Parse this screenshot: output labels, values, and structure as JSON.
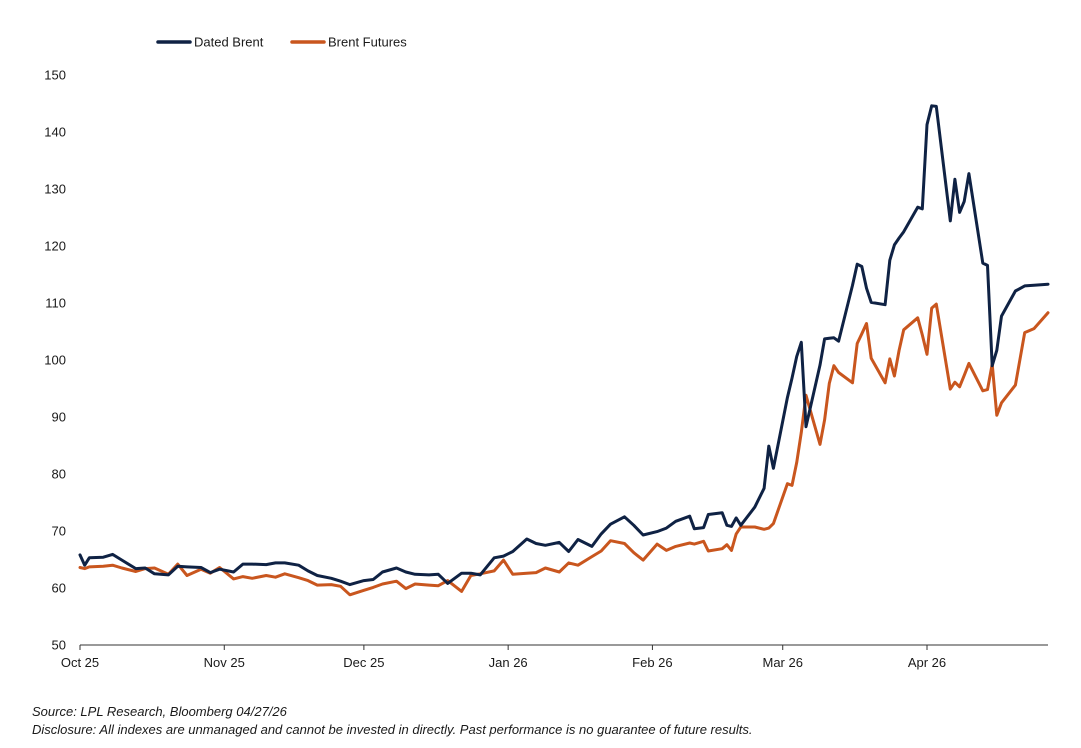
{
  "colors": {
    "dated_brent": "#0f2244",
    "brent_futures": "#c9561e",
    "axis": "#333333"
  },
  "footer": {
    "source": "Source: LPL Research, Bloomberg 04/27/26",
    "disclosure": "Disclosure: All indexes are unmanaged and cannot be invested in directly. Past performance is no guarantee of future results."
  },
  "chart_data": {
    "type": "line",
    "title": "",
    "xlabel": "",
    "ylabel": "",
    "ylim": [
      50,
      150
    ],
    "yticks": [
      50,
      60,
      70,
      80,
      90,
      100,
      110,
      120,
      130,
      140,
      150
    ],
    "xlim": [
      "2025-10-01",
      "2026-04-27"
    ],
    "xticks": [
      {
        "label": "Oct 25",
        "date": "2025-10-01"
      },
      {
        "label": "Nov 25",
        "date": "2025-11-01"
      },
      {
        "label": "Dec 25",
        "date": "2025-12-01"
      },
      {
        "label": "Jan 26",
        "date": "2026-01-01"
      },
      {
        "label": "Feb 26",
        "date": "2026-02-01"
      },
      {
        "label": "Mar 26",
        "date": "2026-03-01"
      },
      {
        "label": "Apr 26",
        "date": "2026-04-01"
      }
    ],
    "grid": false,
    "legend": "top-left",
    "series": [
      {
        "name": "Dated Brent",
        "x": [
          "2025-10-01",
          "2025-10-02",
          "2025-10-03",
          "2025-10-06",
          "2025-10-08",
          "2025-10-10",
          "2025-10-13",
          "2025-10-15",
          "2025-10-17",
          "2025-10-20",
          "2025-10-22",
          "2025-10-24",
          "2025-10-27",
          "2025-10-29",
          "2025-10-31",
          "2025-11-03",
          "2025-11-05",
          "2025-11-07",
          "2025-11-10",
          "2025-11-12",
          "2025-11-14",
          "2025-11-17",
          "2025-11-19",
          "2025-11-21",
          "2025-11-24",
          "2025-11-26",
          "2025-11-28",
          "2025-12-01",
          "2025-12-03",
          "2025-12-05",
          "2025-12-08",
          "2025-12-10",
          "2025-12-12",
          "2025-12-15",
          "2025-12-17",
          "2025-12-19",
          "2025-12-22",
          "2025-12-24",
          "2025-12-26",
          "2025-12-29",
          "2025-12-31",
          "2026-01-02",
          "2026-01-05",
          "2026-01-07",
          "2026-01-09",
          "2026-01-12",
          "2026-01-14",
          "2026-01-16",
          "2026-01-19",
          "2026-01-21",
          "2026-01-23",
          "2026-01-26",
          "2026-01-28",
          "2026-01-30",
          "2026-02-02",
          "2026-02-04",
          "2026-02-06",
          "2026-02-09",
          "2026-02-10",
          "2026-02-12",
          "2026-02-13",
          "2026-02-16",
          "2026-02-17",
          "2026-02-18",
          "2026-02-19",
          "2026-02-20",
          "2026-02-23",
          "2026-02-25",
          "2026-02-26",
          "2026-02-27",
          "2026-03-02",
          "2026-03-03",
          "2026-03-04",
          "2026-03-05",
          "2026-03-06",
          "2026-03-09",
          "2026-03-10",
          "2026-03-11",
          "2026-03-12",
          "2026-03-13",
          "2026-03-16",
          "2026-03-17",
          "2026-03-18",
          "2026-03-19",
          "2026-03-20",
          "2026-03-23",
          "2026-03-24",
          "2026-03-25",
          "2026-03-26",
          "2026-03-27",
          "2026-03-30",
          "2026-03-31",
          "2026-04-01",
          "2026-04-02",
          "2026-04-03",
          "2026-04-06",
          "2026-04-07",
          "2026-04-08",
          "2026-04-09",
          "2026-04-10",
          "2026-04-13",
          "2026-04-14",
          "2026-04-15",
          "2026-04-16",
          "2026-04-17",
          "2026-04-20",
          "2026-04-22",
          "2026-04-24",
          "2026-04-27"
        ],
        "values": [
          65.8,
          64.0,
          65.3,
          65.4,
          65.9,
          64.9,
          63.4,
          63.5,
          62.5,
          62.3,
          63.8,
          63.7,
          63.6,
          62.7,
          63.3,
          62.8,
          64.2,
          64.2,
          64.1,
          64.4,
          64.4,
          64.0,
          63.0,
          62.2,
          61.7,
          61.2,
          60.6,
          61.3,
          61.5,
          62.8,
          63.5,
          62.8,
          62.4,
          62.3,
          62.4,
          60.8,
          62.6,
          62.6,
          62.3,
          65.3,
          65.6,
          66.4,
          68.6,
          67.8,
          67.5,
          68.0,
          66.4,
          68.5,
          67.3,
          69.5,
          71.2,
          72.5,
          71.0,
          69.3,
          69.9,
          70.5,
          71.7,
          72.6,
          70.4,
          70.6,
          72.9,
          73.2,
          71.0,
          70.8,
          72.3,
          71.0,
          74.2,
          77.5,
          84.9,
          81.0,
          93.4,
          96.8,
          100.6,
          103.1,
          88.3,
          99.1,
          103.7,
          103.8,
          103.9,
          103.3,
          113.1,
          116.8,
          116.4,
          112.6,
          110.1,
          109.7,
          117.5,
          120.2,
          121.4,
          122.5,
          126.8,
          126.5,
          141.3,
          144.6,
          144.5,
          124.4,
          131.7,
          125.9,
          127.8,
          132.7,
          117.0,
          116.6,
          99.0,
          101.7,
          107.7,
          112.1,
          113.0,
          113.1,
          113.3
        ]
      },
      {
        "name": "Brent Futures",
        "x": [
          "2025-10-01",
          "2025-10-02",
          "2025-10-03",
          "2025-10-06",
          "2025-10-08",
          "2025-10-10",
          "2025-10-13",
          "2025-10-15",
          "2025-10-17",
          "2025-10-20",
          "2025-10-22",
          "2025-10-24",
          "2025-10-27",
          "2025-10-29",
          "2025-10-31",
          "2025-11-03",
          "2025-11-05",
          "2025-11-07",
          "2025-11-10",
          "2025-11-12",
          "2025-11-14",
          "2025-11-17",
          "2025-11-19",
          "2025-11-21",
          "2025-11-24",
          "2025-11-26",
          "2025-11-28",
          "2025-12-01",
          "2025-12-03",
          "2025-12-05",
          "2025-12-08",
          "2025-12-10",
          "2025-12-12",
          "2025-12-15",
          "2025-12-17",
          "2025-12-19",
          "2025-12-22",
          "2025-12-24",
          "2025-12-26",
          "2025-12-29",
          "2025-12-31",
          "2026-01-02",
          "2026-01-05",
          "2026-01-07",
          "2026-01-09",
          "2026-01-12",
          "2026-01-14",
          "2026-01-16",
          "2026-01-19",
          "2026-01-21",
          "2026-01-23",
          "2026-01-26",
          "2026-01-28",
          "2026-01-30",
          "2026-02-02",
          "2026-02-04",
          "2026-02-06",
          "2026-02-09",
          "2026-02-10",
          "2026-02-12",
          "2026-02-13",
          "2026-02-16",
          "2026-02-17",
          "2026-02-18",
          "2026-02-19",
          "2026-02-20",
          "2026-02-23",
          "2026-02-25",
          "2026-02-26",
          "2026-02-27",
          "2026-03-02",
          "2026-03-03",
          "2026-03-04",
          "2026-03-05",
          "2026-03-06",
          "2026-03-09",
          "2026-03-10",
          "2026-03-11",
          "2026-03-12",
          "2026-03-13",
          "2026-03-16",
          "2026-03-17",
          "2026-03-18",
          "2026-03-19",
          "2026-03-20",
          "2026-03-23",
          "2026-03-24",
          "2026-03-25",
          "2026-03-26",
          "2026-03-27",
          "2026-03-30",
          "2026-03-31",
          "2026-04-01",
          "2026-04-02",
          "2026-04-03",
          "2026-04-06",
          "2026-04-07",
          "2026-04-08",
          "2026-04-09",
          "2026-04-10",
          "2026-04-13",
          "2026-04-14",
          "2026-04-15",
          "2026-04-16",
          "2026-04-17",
          "2026-04-20",
          "2026-04-22",
          "2026-04-24",
          "2026-04-27"
        ],
        "values": [
          63.6,
          63.4,
          63.7,
          63.8,
          64.0,
          63.5,
          62.9,
          63.4,
          63.5,
          62.4,
          64.2,
          62.2,
          63.3,
          62.6,
          63.6,
          61.6,
          62.0,
          61.7,
          62.2,
          61.9,
          62.5,
          61.8,
          61.3,
          60.5,
          60.6,
          60.3,
          58.8,
          59.6,
          60.1,
          60.7,
          61.2,
          59.9,
          60.7,
          60.5,
          60.4,
          61.3,
          59.4,
          62.2,
          62.5,
          63.0,
          64.9,
          62.4,
          62.6,
          62.7,
          63.5,
          62.8,
          64.4,
          64.0,
          65.5,
          66.5,
          68.3,
          67.8,
          66.2,
          64.9,
          67.7,
          66.6,
          67.3,
          67.9,
          67.7,
          68.2,
          66.5,
          66.9,
          67.6,
          66.6,
          69.5,
          70.7,
          70.7,
          70.3,
          70.5,
          71.3,
          78.3,
          78.0,
          82.0,
          87.3,
          93.8,
          85.2,
          89.5,
          95.9,
          99.0,
          97.8,
          96.0,
          102.9,
          104.6,
          106.4,
          100.3,
          96.0,
          100.2,
          97.2,
          101.7,
          105.3,
          107.4,
          104.4,
          101.0,
          109.1,
          109.8,
          94.9,
          96.1,
          95.3,
          97.3,
          99.4,
          94.6,
          94.8,
          99.3,
          90.3,
          92.5,
          95.6,
          104.8,
          105.5,
          108.3
        ]
      }
    ]
  }
}
